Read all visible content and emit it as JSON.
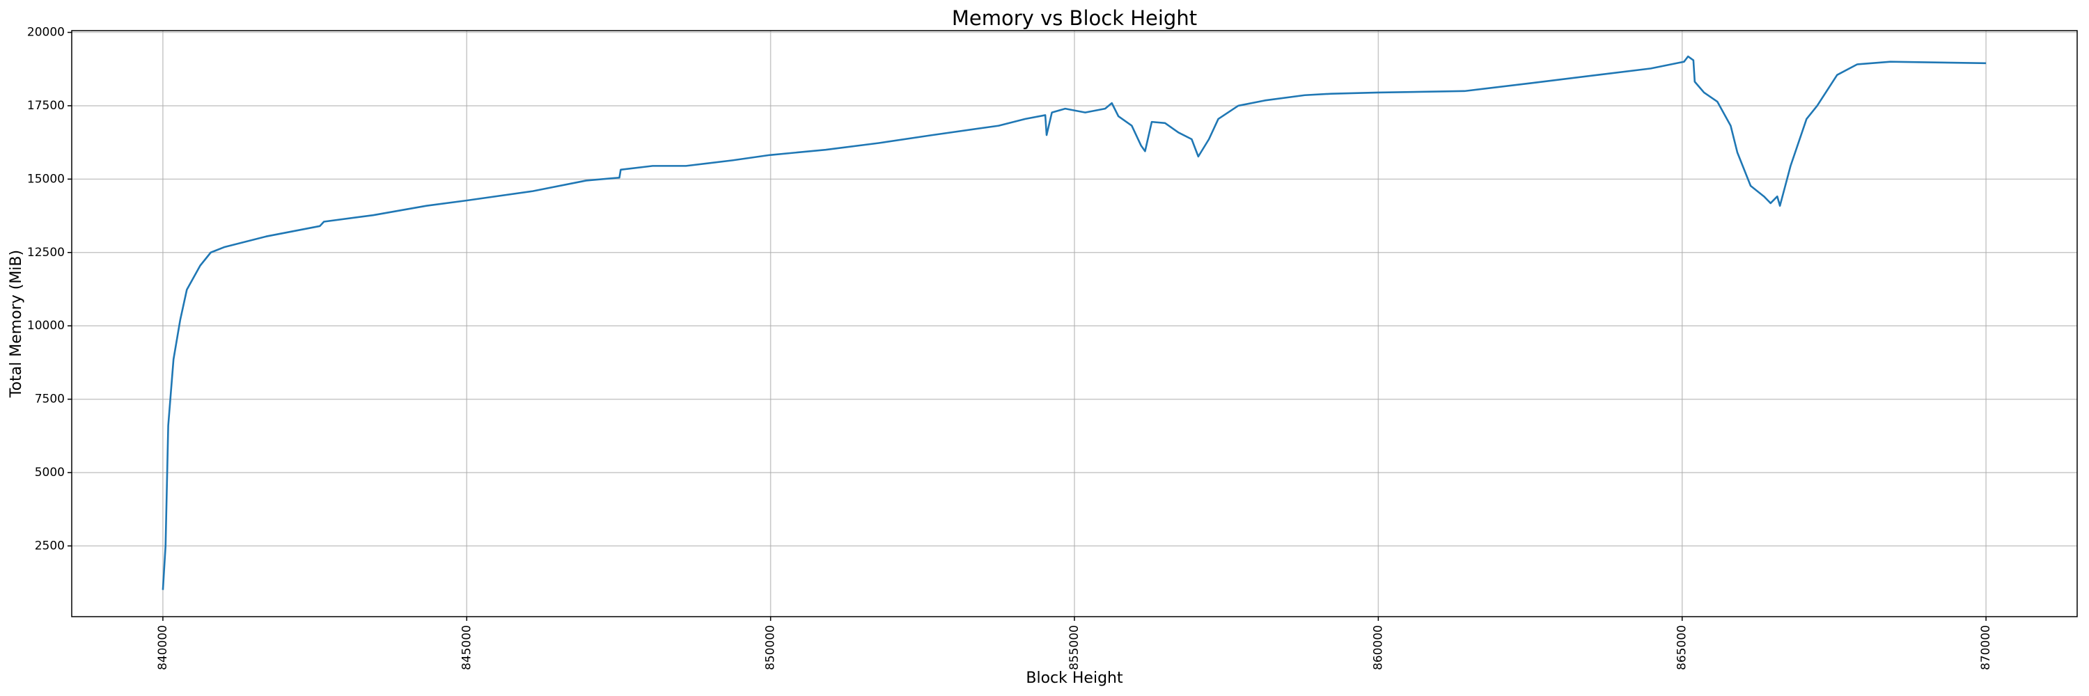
{
  "chart_data": {
    "type": "line",
    "title": "Memory vs Block Height",
    "xlabel": "Block Height",
    "ylabel": "Total Memory (MiB)",
    "x": [
      840000,
      840044,
      840088,
      840175,
      840285,
      840394,
      840613,
      840788,
      841007,
      841708,
      842584,
      842650,
      843460,
      844336,
      844993,
      846088,
      846964,
      847512,
      847534,
      848059,
      848607,
      849373,
      849986,
      850906,
      851782,
      852658,
      853753,
      854191,
      854520,
      854542,
      854629,
      854848,
      855177,
      855505,
      855615,
      855724,
      855943,
      856097,
      856162,
      856272,
      856491,
      856710,
      856929,
      857038,
      857213,
      857367,
      857695,
      858133,
      858790,
      859228,
      859995,
      861418,
      862513,
      863608,
      864484,
      865031,
      865097,
      865185,
      865207,
      865360,
      865579,
      865798,
      865908,
      866127,
      866346,
      866455,
      866565,
      866609,
      866784,
      867047,
      867222,
      867550,
      867879,
      868426,
      870000
    ],
    "values": [
      1000,
      2500,
      6600,
      8860,
      10200,
      11230,
      12050,
      12500,
      12680,
      13050,
      13400,
      13550,
      13770,
      14090,
      14270,
      14590,
      14950,
      15050,
      15320,
      15450,
      15450,
      15640,
      15820,
      16000,
      16230,
      16500,
      16820,
      17050,
      17180,
      16500,
      17270,
      17400,
      17270,
      17400,
      17590,
      17140,
      16820,
      16140,
      15950,
      16950,
      16910,
      16590,
      16360,
      15770,
      16360,
      17050,
      17500,
      17680,
      17860,
      17910,
      17950,
      18000,
      18270,
      18550,
      18770,
      19000,
      19180,
      19050,
      18320,
      17950,
      17640,
      16820,
      15910,
      14770,
      14410,
      14180,
      14410,
      14090,
      15450,
      17050,
      17500,
      18550,
      18910,
      19000,
      18950
    ],
    "color": "#1f77b4",
    "xlim": [
      838500,
      871500
    ],
    "xticks": [
      840000,
      845000,
      850000,
      855000,
      860000,
      865000,
      870000
    ],
    "ylim": [
      90,
      20060
    ],
    "yticks": [
      2500,
      5000,
      7500,
      10000,
      12500,
      15000,
      17500,
      20000
    ],
    "grid": true
  }
}
